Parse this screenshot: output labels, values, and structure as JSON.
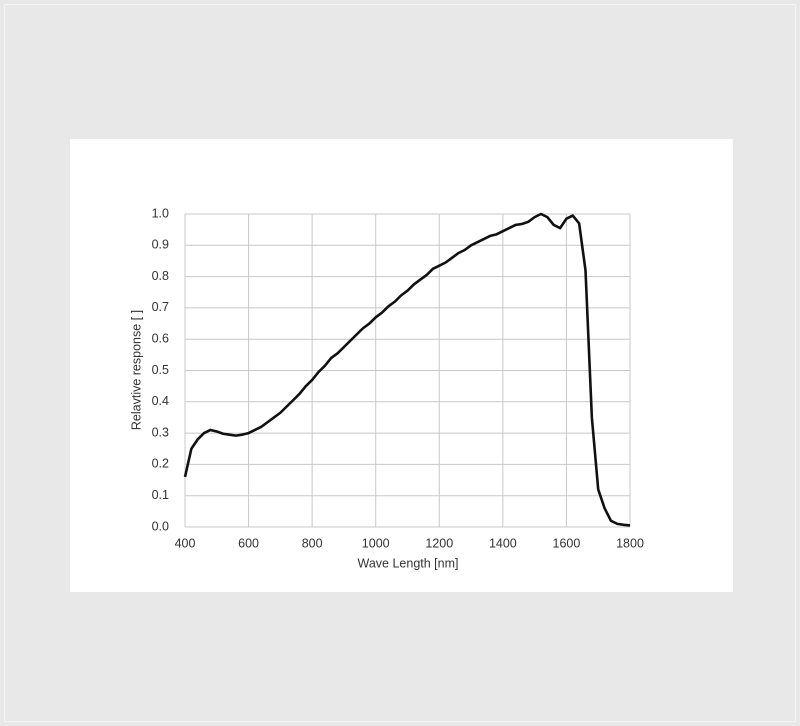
{
  "chart_data": {
    "type": "line",
    "x_label": "Wave Length [nm]",
    "y_label": "Relavtive response [ ]",
    "x": [
      400,
      420,
      440,
      460,
      480,
      500,
      520,
      540,
      560,
      580,
      600,
      620,
      640,
      660,
      680,
      700,
      720,
      740,
      760,
      780,
      800,
      820,
      840,
      860,
      880,
      900,
      920,
      940,
      960,
      980,
      1000,
      1020,
      1040,
      1060,
      1080,
      1100,
      1120,
      1140,
      1160,
      1180,
      1200,
      1220,
      1240,
      1260,
      1280,
      1300,
      1320,
      1340,
      1360,
      1380,
      1400,
      1420,
      1440,
      1460,
      1480,
      1500,
      1520,
      1540,
      1560,
      1580,
      1600,
      1620,
      1640,
      1660,
      1680,
      1700,
      1720,
      1740,
      1760,
      1780,
      1800
    ],
    "series": [
      {
        "color": "#111111",
        "values": [
          0.16,
          0.25,
          0.28,
          0.3,
          0.31,
          0.305,
          0.298,
          0.295,
          0.292,
          0.295,
          0.3,
          0.31,
          0.32,
          0.335,
          0.35,
          0.365,
          0.385,
          0.405,
          0.425,
          0.45,
          0.47,
          0.495,
          0.515,
          0.54,
          0.555,
          0.575,
          0.595,
          0.615,
          0.635,
          0.65,
          0.67,
          0.685,
          0.705,
          0.72,
          0.74,
          0.755,
          0.775,
          0.79,
          0.805,
          0.825,
          0.835,
          0.845,
          0.86,
          0.875,
          0.885,
          0.9,
          0.91,
          0.92,
          0.93,
          0.935,
          0.945,
          0.955,
          0.965,
          0.968,
          0.975,
          0.99,
          1.0,
          0.99,
          0.965,
          0.955,
          0.985,
          0.995,
          0.97,
          0.82,
          0.35,
          0.12,
          0.06,
          0.02,
          0.01,
          0.007,
          0.005
        ]
      }
    ],
    "xlim": [
      400,
      1800
    ],
    "xticks": [
      400,
      600,
      800,
      1000,
      1200,
      1400,
      1600,
      1800
    ],
    "ylim": [
      0,
      1
    ],
    "yticks": [
      {
        "value": 0,
        "label": "0.0"
      },
      0.1,
      0.2,
      0.3,
      0.4,
      0.5,
      0.6,
      0.7,
      0.8,
      0.9,
      {
        "value": 1,
        "label": "1.0"
      }
    ],
    "grid": true
  }
}
